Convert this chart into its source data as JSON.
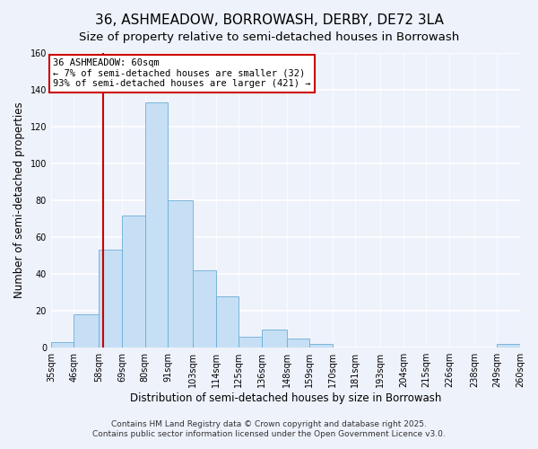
{
  "title": "36, ASHMEADOW, BORROWASH, DERBY, DE72 3LA",
  "subtitle": "Size of property relative to semi-detached houses in Borrowash",
  "xlabel": "Distribution of semi-detached houses by size in Borrowash",
  "ylabel": "Number of semi-detached properties",
  "bin_edges": [
    35,
    46,
    58,
    69,
    80,
    91,
    103,
    114,
    125,
    136,
    148,
    159,
    170,
    181,
    193,
    204,
    215,
    226,
    238,
    249,
    260
  ],
  "bar_heights": [
    3,
    18,
    53,
    72,
    133,
    80,
    42,
    28,
    6,
    10,
    5,
    2,
    0,
    0,
    0,
    0,
    0,
    0,
    0,
    2
  ],
  "bar_color": "#c6dff5",
  "bar_edge_color": "#6baed6",
  "property_line_x": 60,
  "property_line_color": "#cc0000",
  "annotation_title": "36 ASHMEADOW: 60sqm",
  "annotation_line1": "← 7% of semi-detached houses are smaller (32)",
  "annotation_line2": "93% of semi-detached houses are larger (421) →",
  "annotation_box_facecolor": "#ffffff",
  "annotation_box_edgecolor": "#cc0000",
  "ylim": [
    0,
    160
  ],
  "yticks": [
    0,
    20,
    40,
    60,
    80,
    100,
    120,
    140,
    160
  ],
  "tick_labels": [
    "35sqm",
    "46sqm",
    "58sqm",
    "69sqm",
    "80sqm",
    "91sqm",
    "103sqm",
    "114sqm",
    "125sqm",
    "136sqm",
    "148sqm",
    "159sqm",
    "170sqm",
    "181sqm",
    "193sqm",
    "204sqm",
    "215sqm",
    "226sqm",
    "238sqm",
    "249sqm",
    "260sqm"
  ],
  "footer_line1": "Contains HM Land Registry data © Crown copyright and database right 2025.",
  "footer_line2": "Contains public sector information licensed under the Open Government Licence v3.0.",
  "background_color": "#eef2fb",
  "grid_color": "#ffffff",
  "title_fontsize": 11,
  "subtitle_fontsize": 9.5,
  "axis_label_fontsize": 8.5,
  "tick_fontsize": 7,
  "annotation_fontsize": 7.5,
  "footer_fontsize": 6.5
}
